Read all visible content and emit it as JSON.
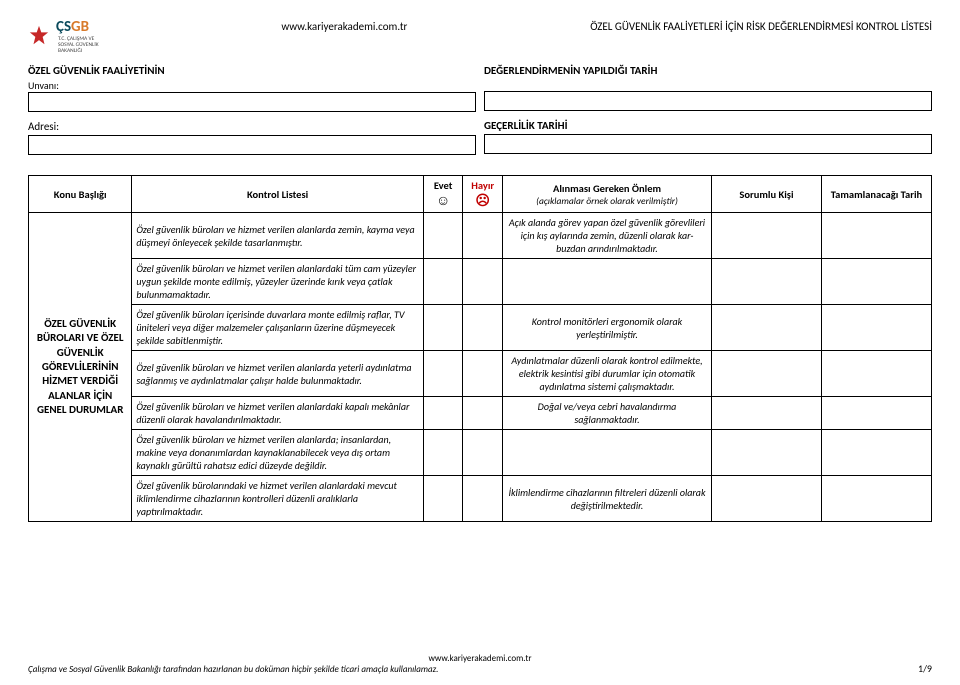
{
  "header": {
    "logo_text_a": "ÇS",
    "logo_text_b": "GB",
    "logo_sub1": "T.C. ÇALIŞMA VE",
    "logo_sub2": "SOSYAL GÜVENLİK",
    "logo_sub3": "BAKANLIĞI",
    "site": "www.kariyerakademi.com.tr",
    "right_title": "ÖZEL GÜVENLİK FAALİYETLERİ İÇİN RİSK DEĞERLENDİRMESİ KONTROL LİSTESİ"
  },
  "form": {
    "left_label1": "ÖZEL GÜVENLİK FAALİYETİNİN",
    "left_label1_sub": "Unvanı:",
    "left_label2": "Adresi:",
    "right_label1": "DEĞERLENDİRMENİN YAPILDIĞI TARİH",
    "right_label2": "GEÇERLİLİK TARİHİ"
  },
  "table": {
    "columns": {
      "konu": "Konu Başlığı",
      "liste": "Kontrol Listesi",
      "evet": "Evet",
      "hayir": "Hayır",
      "onlem": "Alınması Gereken Önlem",
      "onlem_sub": "(açıklamalar örnek olarak verilmiştir)",
      "sorumlu": "Sorumlu Kişi",
      "tarih": "Tamamlanacağı Tarih"
    },
    "widths": {
      "konu": 94,
      "liste": 265,
      "evet": 36,
      "hayir": 36,
      "onlem": 190,
      "sorumlu": 100,
      "tarih": 100
    },
    "colors": {
      "border": "#000000",
      "hayir": "#c00000",
      "background": "#ffffff"
    },
    "evet_symbol": "☺",
    "hayir_symbol": "☹",
    "konu_text": "ÖZEL GÜVENLİK BÜROLARI VE ÖZEL GÜVENLİK GÖREVLİLERİNİN HİZMET VERDİĞİ ALANLAR İÇİN GENEL DURUMLAR",
    "rows": [
      {
        "liste": "Özel güvenlik büroları ve hizmet verilen alanlarda zemin, kayma veya düşmeyi önleyecek şekilde tasarlanmıştır.",
        "onlem": "Açık alanda görev yapan özel güvenlik görevlileri için kış aylarında zemin, düzenli olarak kar-buzdan arındırılmaktadır."
      },
      {
        "liste": "Özel güvenlik büroları ve hizmet verilen alanlardaki tüm cam yüzeyler uygun şekilde monte edilmiş, yüzeyler üzerinde kırık veya çatlak bulunmamaktadır.",
        "onlem": ""
      },
      {
        "liste": "Özel güvenlik büroları içerisinde duvarlara monte edilmiş raflar, TV üniteleri veya diğer malzemeler çalışanların üzerine düşmeyecek şekilde sabitlenmiştir.",
        "onlem": "Kontrol monitörleri ergonomik olarak yerleştirilmiştir."
      },
      {
        "liste": "Özel güvenlik büroları ve hizmet verilen alanlarda yeterli aydınlatma sağlanmış ve aydınlatmalar çalışır halde bulunmaktadır.",
        "onlem": "Aydınlatmalar düzenli olarak kontrol edilmekte, elektrik kesintisi gibi durumlar için otomatik aydınlatma sistemi çalışmaktadır."
      },
      {
        "liste": "Özel güvenlik büroları ve hizmet verilen alanlardaki kapalı mekânlar düzenli olarak havalandırılmaktadır.",
        "onlem": "Doğal ve/veya cebri havalandırma sağlanmaktadır."
      },
      {
        "liste": "Özel güvenlik büroları ve hizmet verilen alanlarda; insanlardan, makine veya donanımlardan kaynaklanabilecek veya dış ortam kaynaklı gürültü rahatsız edici düzeyde değildir.",
        "onlem": ""
      },
      {
        "liste": "Özel güvenlik bürolarındaki ve hizmet verilen alanlardaki mevcut iklimlendirme cihazlarının kontrolleri düzenli aralıklarla yaptırılmaktadır.",
        "onlem": "İklimlendirme cihazlarının filtreleri düzenli olarak değiştirilmektedir."
      }
    ]
  },
  "footer": {
    "site": "www.kariyerakademi.com.tr",
    "disclaimer": "Çalışma ve Sosyal Güvenlik Bakanlığı tarafından hazırlanan bu doküman hiçbir şekilde ticari amaçla kullanılamaz.",
    "page": "1/9"
  }
}
